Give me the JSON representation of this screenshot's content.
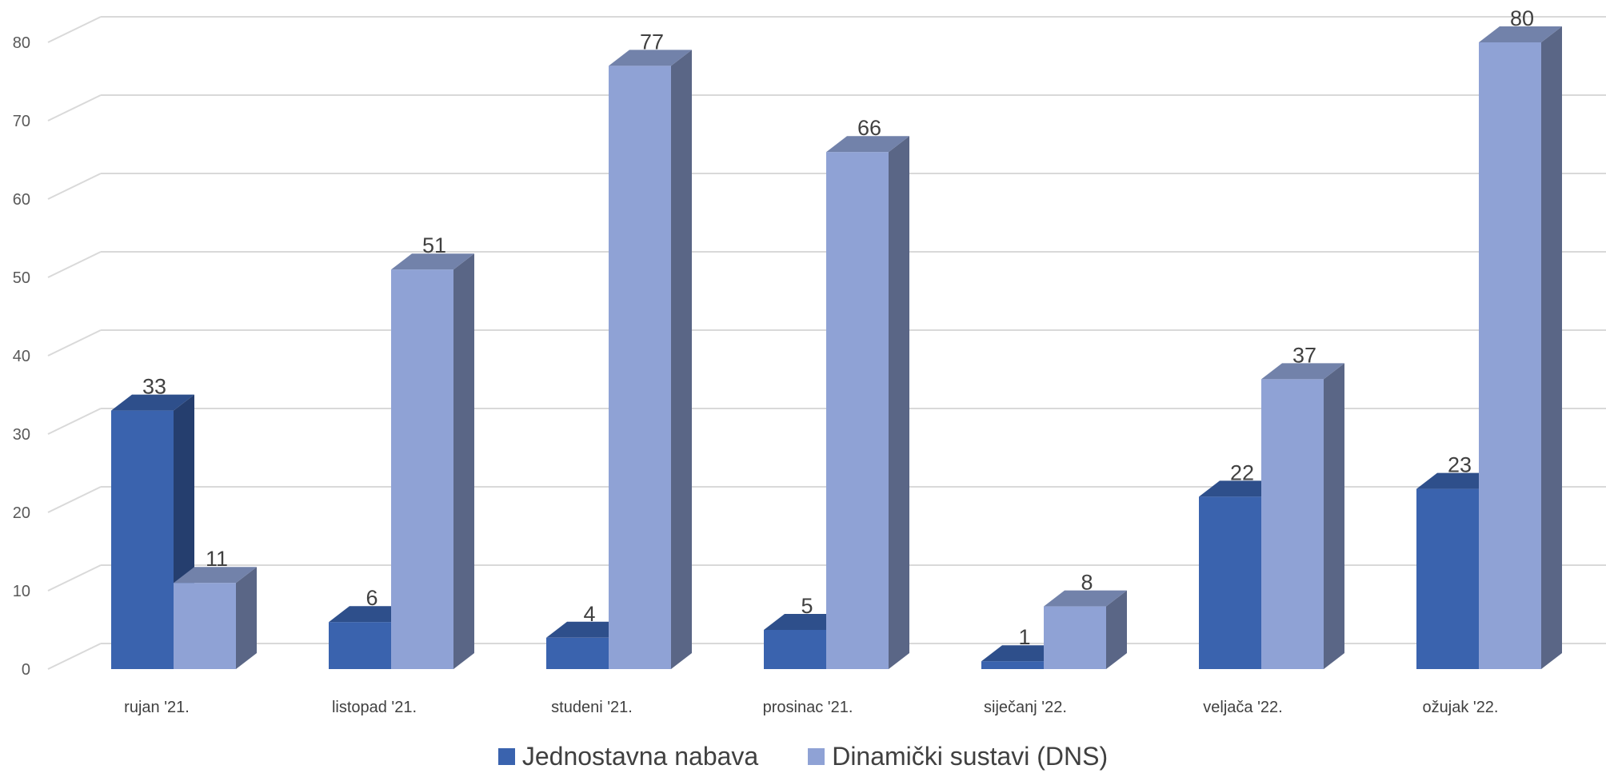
{
  "chart_data": {
    "type": "bar",
    "categories": [
      "rujan '21.",
      "listopad '21.",
      "studeni '21.",
      "prosinac '21.",
      "siječanj '22.",
      "veljača '22.",
      "ožujak '22."
    ],
    "series": [
      {
        "name": "Jednostavna nabava",
        "values": [
          33,
          6,
          4,
          5,
          1,
          22,
          23
        ],
        "color": "#3A63AE"
      },
      {
        "name": "Dinamički sustavi (DNS)",
        "values": [
          11,
          51,
          77,
          66,
          8,
          37,
          80
        ],
        "color": "#8FA2D5"
      }
    ],
    "yticks": [
      0,
      10,
      20,
      30,
      40,
      50,
      60,
      70,
      80
    ],
    "ylim": [
      0,
      84
    ],
    "grid": true,
    "legend_position": "bottom",
    "data_labels": true,
    "style": "3d-clustered-column"
  }
}
